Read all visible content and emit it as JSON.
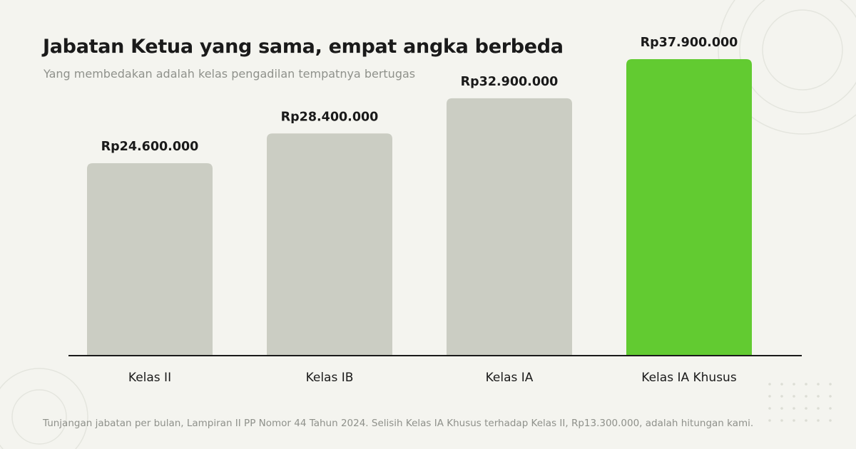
{
  "title": "Jabatan Ketua yang sama, empat angka berbeda",
  "subtitle": "Yang membedakan adalah kelas pengadilan tempatnya bertugas",
  "footnote": "Tunjangan jabatan per bulan, Lampiran II PP Nomor 44 Tahun 2024. Selisih Kelas IA Khusus terhadap Kelas II, Rp13.300.000, adalah hitungan kami.",
  "colors": {
    "background": "#f4f4ef",
    "bar_default": "#cbcdc3",
    "bar_highlight": "#62cb31",
    "baseline": "#1a1a1a",
    "text": "#1a1a1a",
    "muted": "#8f918b",
    "decoration": "#e4e5de"
  },
  "chart_data": {
    "type": "bar",
    "categories": [
      "Kelas II",
      "Kelas IB",
      "Kelas IA",
      "Kelas IA Khusus"
    ],
    "values": [
      24600000,
      28400000,
      32900000,
      37900000
    ],
    "value_labels": [
      "Rp24.600.000",
      "Rp28.400.000",
      "Rp32.900.000",
      "Rp37.900.000"
    ],
    "highlight_index": 3,
    "title": "Jabatan Ketua yang sama, empat angka berbeda",
    "subtitle": "Yang membedakan adalah kelas pengadilan tempatnya bertugas",
    "xlabel": "",
    "ylabel": "",
    "ylim": [
      0,
      40000000
    ],
    "grid": false,
    "y_axis_visible": false
  }
}
